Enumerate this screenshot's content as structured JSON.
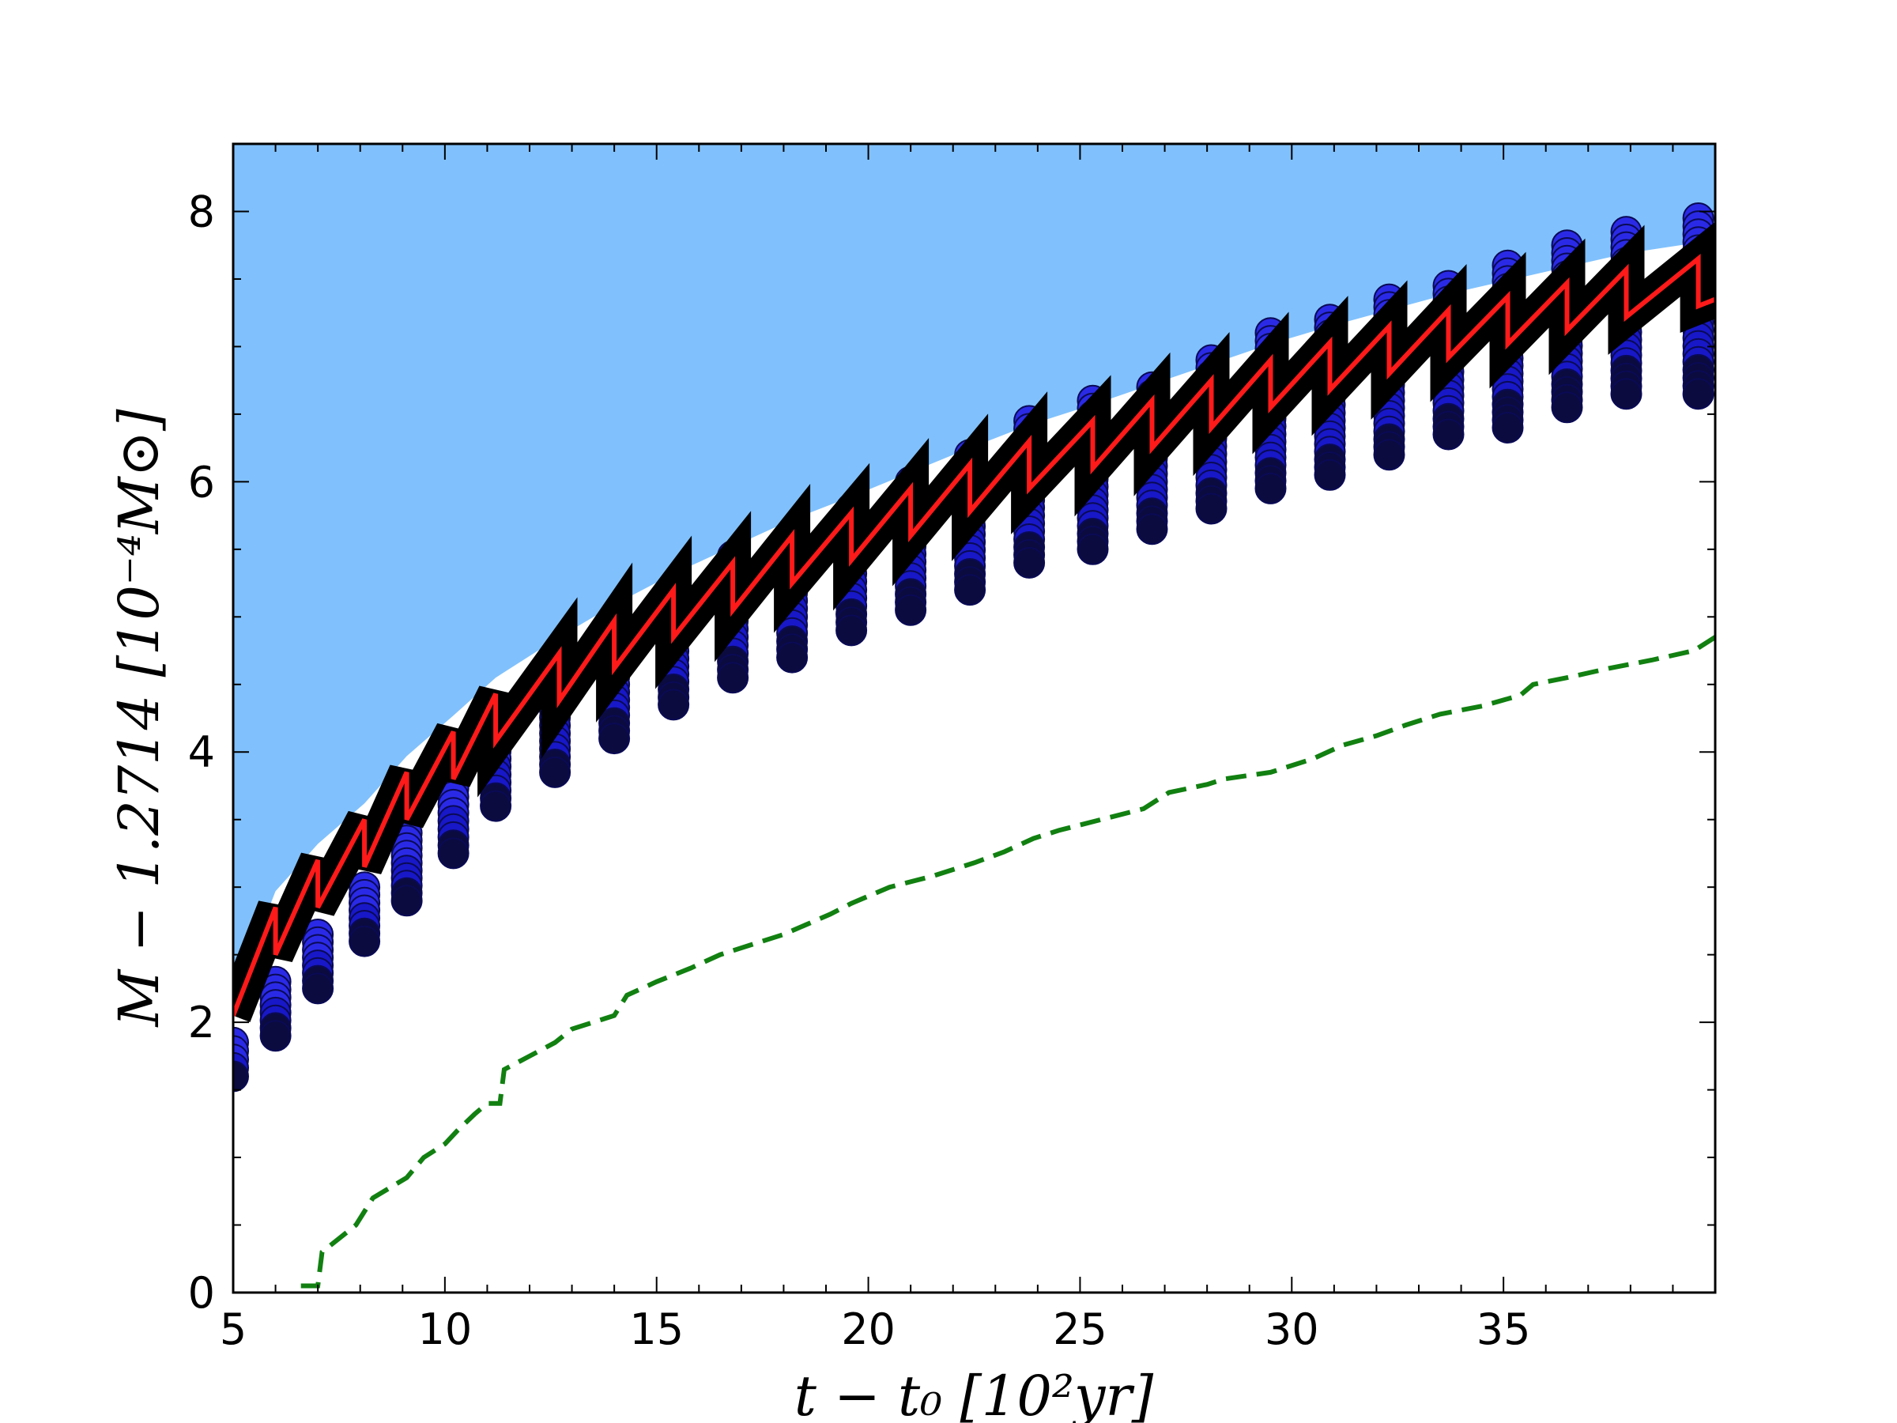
{
  "chart_data": {
    "type": "line",
    "title": "",
    "xlabel": "t − t₀ [10²yr]",
    "ylabel": "M − 1.2714 [10⁻⁴M⊙]",
    "xlim": [
      5,
      40
    ],
    "ylim": [
      0,
      8.5
    ],
    "xticks": [
      5,
      10,
      15,
      20,
      25,
      30,
      35
    ],
    "xtick_labels": [
      "5",
      "10",
      "15",
      "20",
      "25",
      "30",
      "35"
    ],
    "yticks": [
      0,
      2,
      4,
      6,
      8
    ],
    "ytick_labels": [
      "0",
      "2",
      "4",
      "6",
      "8"
    ],
    "grid": false,
    "legend": "none",
    "colors": {
      "shaded_region": "#80c1fd",
      "black_band": "#000000",
      "scatter_points": "#1414e6",
      "red_line": "#ff1a1a",
      "green_dashed": "#118011"
    },
    "series": [
      {
        "kind": "sawtooth",
        "style": "red line",
        "x": [
          5.0,
          6.0,
          7.0,
          8.1,
          9.1,
          10.2,
          11.2,
          12.7,
          14.0,
          15.4,
          16.8,
          18.2,
          19.6,
          21.0,
          22.4,
          23.8,
          25.3,
          26.7,
          28.1,
          29.5,
          30.9,
          32.3,
          33.7,
          35.1,
          36.5,
          37.9,
          39.6
        ],
        "y": [
          2.05,
          2.5,
          2.85,
          3.15,
          3.5,
          3.8,
          4.08,
          4.38,
          4.62,
          4.85,
          5.05,
          5.25,
          5.42,
          5.6,
          5.78,
          5.95,
          6.1,
          6.25,
          6.4,
          6.55,
          6.68,
          6.8,
          6.92,
          7.02,
          7.12,
          7.22,
          7.3
        ]
      },
      {
        "kind": "scatter columns",
        "style": "blue circles",
        "x": [
          5.0,
          6.0,
          7.0,
          8.1,
          9.1,
          10.2,
          11.2,
          12.6,
          14.0,
          15.4,
          16.8,
          18.2,
          19.6,
          21.0,
          22.4,
          23.8,
          25.3,
          26.7,
          28.1,
          29.5,
          30.9,
          32.3,
          33.7,
          35.1,
          36.5,
          37.9,
          39.6
        ],
        "y_min": [
          1.6,
          1.9,
          2.25,
          2.6,
          2.9,
          3.25,
          3.6,
          3.85,
          4.1,
          4.35,
          4.55,
          4.7,
          4.9,
          5.05,
          5.2,
          5.4,
          5.5,
          5.65,
          5.8,
          5.95,
          6.05,
          6.2,
          6.35,
          6.4,
          6.55,
          6.65,
          6.65
        ],
        "y_max": [
          1.85,
          2.3,
          2.65,
          3.0,
          3.4,
          3.85,
          4.3,
          4.6,
          4.9,
          5.2,
          5.45,
          5.6,
          5.8,
          6.0,
          6.2,
          6.45,
          6.6,
          6.7,
          6.9,
          7.1,
          7.2,
          7.35,
          7.45,
          7.6,
          7.75,
          7.85,
          7.95
        ]
      },
      {
        "kind": "dashed line",
        "style": "green dashed",
        "x": [
          6.6,
          7.0,
          7.1,
          7.9,
          8.3,
          9.1,
          9.5,
          10.0,
          10.3,
          10.7,
          11.0,
          11.3,
          11.4,
          12.0,
          12.6,
          13.0,
          14.0,
          14.3,
          15.0,
          15.8,
          16.5,
          18.0,
          19.1,
          19.6,
          20.5,
          21.5,
          22.5,
          23.2,
          23.9,
          24.5,
          25.5,
          26.5,
          27.1,
          28.0,
          28.4,
          29.5,
          30.5,
          31.2,
          32.0,
          32.7,
          33.5,
          34.5,
          35.4,
          35.7,
          36.5,
          37.5,
          38.5,
          39.5,
          40.0
        ],
        "y": [
          0.05,
          0.05,
          0.3,
          0.5,
          0.7,
          0.85,
          1.0,
          1.1,
          1.2,
          1.32,
          1.4,
          1.4,
          1.65,
          1.75,
          1.85,
          1.95,
          2.05,
          2.2,
          2.3,
          2.4,
          2.5,
          2.65,
          2.8,
          2.88,
          3.0,
          3.08,
          3.18,
          3.26,
          3.36,
          3.42,
          3.5,
          3.58,
          3.7,
          3.76,
          3.8,
          3.85,
          3.95,
          4.05,
          4.12,
          4.2,
          4.28,
          4.34,
          4.42,
          4.5,
          4.55,
          4.62,
          4.68,
          4.75,
          4.85
        ]
      }
    ]
  }
}
